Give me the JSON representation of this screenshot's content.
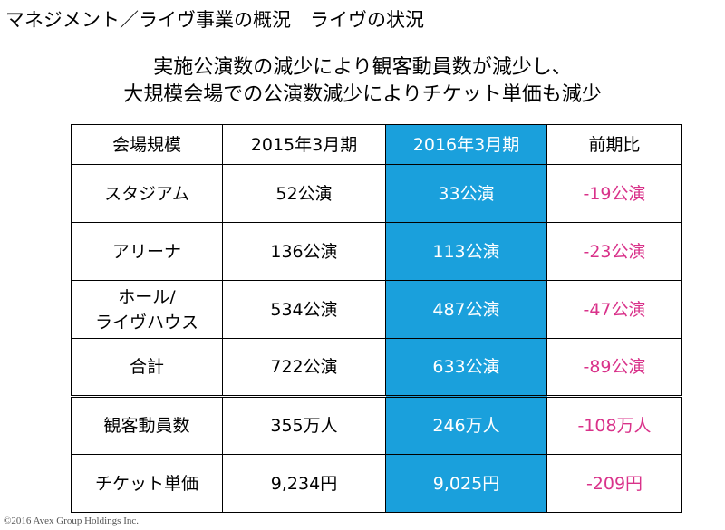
{
  "header": {
    "title": "マネジメント／ライヴ事業の概況　ライヴの状況",
    "subtitle_line1": "実施公演数の減少により観客動員数が減少し、",
    "subtitle_line2": "大規模会場での公演数減少によりチケット単価も減少"
  },
  "table": {
    "columns": [
      "会場規模",
      "2015年3月期",
      "2016年3月期",
      "前期比"
    ],
    "rows": [
      {
        "label": "スタジアム",
        "fy2015": "52公演",
        "fy2016": "33公演",
        "change": "-19公演"
      },
      {
        "label": "アリーナ",
        "fy2015": "136公演",
        "fy2016": "113公演",
        "change": "-23公演"
      },
      {
        "label_line1": "ホール/",
        "label_line2": "ライヴハウス",
        "fy2015": "534公演",
        "fy2016": "487公演",
        "change": "-47公演"
      },
      {
        "label": "合計",
        "fy2015": "722公演",
        "fy2016": "633公演",
        "change": "-89公演"
      },
      {
        "label": "観客動員数",
        "fy2015": "355万人",
        "fy2016": "246万人",
        "change": "-108万人"
      },
      {
        "label": "チケット単価",
        "fy2015": "9,234円",
        "fy2016": "9,025円",
        "change": "-209円"
      }
    ]
  },
  "footer": {
    "copyright": "©2016 Avex Group Holdings Inc."
  },
  "colors": {
    "highlight_column": "#1aa0dc",
    "negative_text": "#d9328a"
  }
}
